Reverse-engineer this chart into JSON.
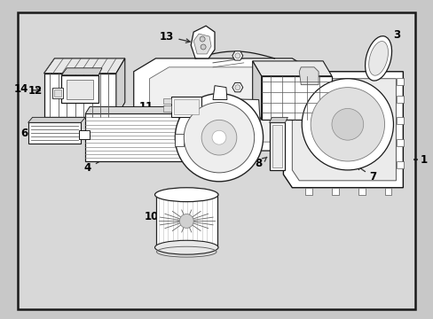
{
  "bg_color": "#d8d8d8",
  "border_color": "#1a1a1a",
  "line_color": "#1a1a1a",
  "text_color": "#000000",
  "fig_bg": "#c8c8c8",
  "label_fontsize": 8.5,
  "border_lw": 1.5
}
